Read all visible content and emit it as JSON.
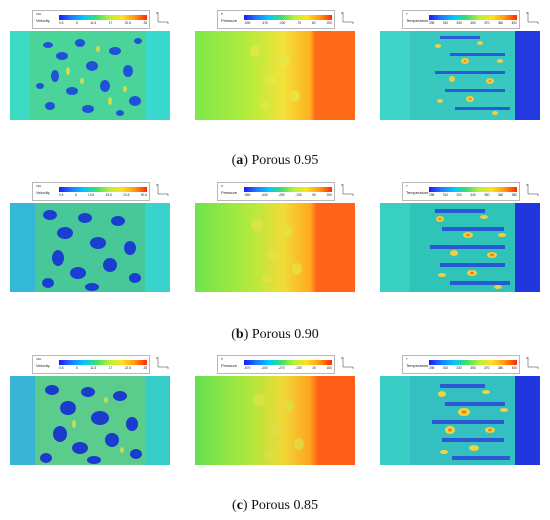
{
  "rows": [
    {
      "caption_letter": "a",
      "caption_text": "Porous 0.95",
      "legends": [
        {
          "quantity": "VEL",
          "label": "Velocity",
          "ticks": [
            "0.5",
            "6",
            "11.5",
            "17",
            "22.5",
            "28"
          ]
        },
        {
          "quantity": "P",
          "label": "Pressure",
          "ticks": [
            "-500",
            "-375",
            "-200",
            "-75",
            "80",
            "200"
          ]
        },
        {
          "quantity": "T",
          "label": "Temperature",
          "ticks": [
            "298",
            "310",
            "330",
            "350",
            "370",
            "380",
            "400"
          ]
        }
      ]
    },
    {
      "caption_letter": "b",
      "caption_text": "Porous 0.90",
      "legends": [
        {
          "quantity": "VEL",
          "label": "Velocity",
          "ticks": [
            "0.5",
            "6",
            "13.5",
            "19.5",
            "24.5",
            "30.5"
          ]
        },
        {
          "quantity": "P",
          "label": "Pressure",
          "ticks": [
            "-560",
            "-440",
            "-250",
            "-130",
            "60",
            "200"
          ]
        },
        {
          "quantity": "T",
          "label": "Temperature",
          "ticks": [
            "298",
            "310",
            "320",
            "340",
            "350",
            "360",
            "380"
          ]
        }
      ]
    },
    {
      "caption_letter": "c",
      "caption_text": "Porous 0.85",
      "legends": [
        {
          "quantity": "VEL",
          "label": "Velocity",
          "ticks": [
            "0.5",
            "6",
            "11.5",
            "17",
            "22.5",
            "28"
          ]
        },
        {
          "quantity": "P",
          "label": "Pressure",
          "ticks": [
            "-570",
            "-400",
            "-270",
            "-130",
            "30",
            "160"
          ]
        },
        {
          "quantity": "T",
          "label": "Temperature",
          "ticks": [
            "298",
            "310",
            "330",
            "350",
            "370",
            "380",
            "400"
          ]
        }
      ]
    }
  ],
  "axis_labels": {
    "vertical": "Z",
    "horizontal": "X"
  }
}
